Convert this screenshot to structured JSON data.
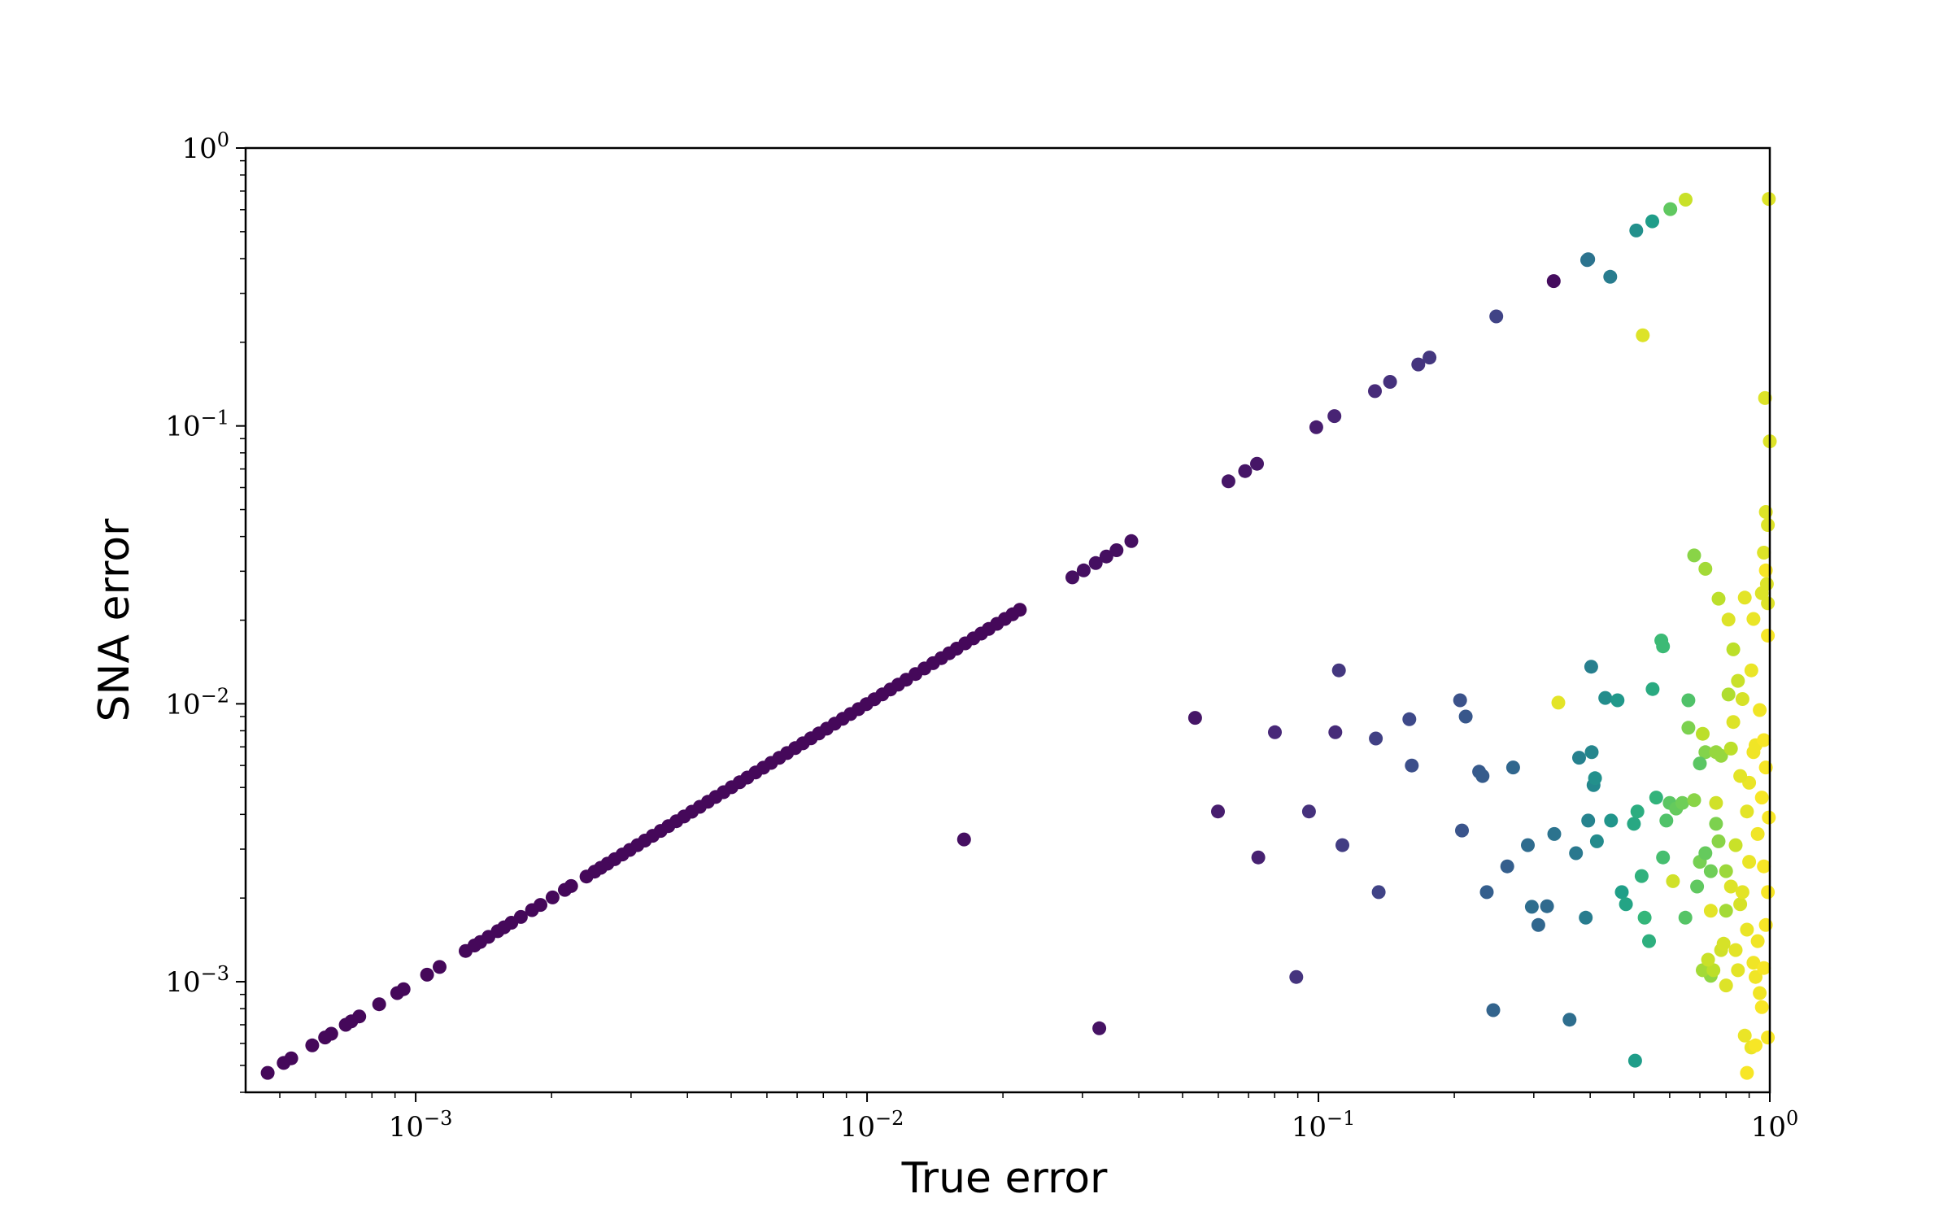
{
  "chart_data": {
    "type": "scatter",
    "title": "",
    "xlabel": "True error",
    "ylabel": "SNA error",
    "xscale": "log",
    "yscale": "log",
    "xlim": [
      0.00042,
      1.0
    ],
    "ylim": [
      0.0004,
      1.0
    ],
    "grid": false,
    "legend": "none",
    "colormap": "viridis",
    "x_ticks": [
      {
        "value": 0.001,
        "base": "10",
        "exp": "−3"
      },
      {
        "value": 0.01,
        "base": "10",
        "exp": "−2"
      },
      {
        "value": 0.1,
        "base": "10",
        "exp": "−1"
      },
      {
        "value": 1,
        "base": "10",
        "exp": "0"
      }
    ],
    "y_ticks": [
      {
        "value": 0.001,
        "base": "10",
        "exp": "−3"
      },
      {
        "value": 0.01,
        "base": "10",
        "exp": "−2"
      },
      {
        "value": 0.1,
        "base": "10",
        "exp": "−1"
      },
      {
        "value": 1,
        "base": "10",
        "exp": "0"
      }
    ],
    "diagonal_points": {
      "x": [
        0.00047,
        0.00051,
        0.00053,
        0.00059,
        0.00063,
        0.00065,
        0.0007,
        0.00072,
        0.00075,
        0.00083,
        0.00091,
        0.00094,
        0.00106,
        0.00113,
        0.00129,
        0.00135,
        0.00139,
        0.00145,
        0.00152,
        0.00157,
        0.00163,
        0.00171,
        0.00181,
        0.00189,
        0.00201,
        0.00214,
        0.00221,
        0.00239,
        0.00249,
        0.00257,
        0.00266,
        0.00276,
        0.00287,
        0.00298,
        0.0031,
        0.00322,
        0.00335,
        0.00349,
        0.00363,
        0.00378,
        0.00393,
        0.00409,
        0.00426,
        0.00444,
        0.00462,
        0.00481,
        0.00501,
        0.00522,
        0.00543,
        0.00566,
        0.00589,
        0.00613,
        0.00639,
        0.00665,
        0.00693,
        0.00721,
        0.00751,
        0.00782,
        0.00814,
        0.00848,
        0.00883,
        0.00919,
        0.00957,
        0.00997,
        0.01038,
        0.01081,
        0.01126,
        0.01172,
        0.01221,
        0.0128,
        0.0134,
        0.014,
        0.0146,
        0.0152,
        0.0158,
        0.0165,
        0.0172,
        0.0179,
        0.0186,
        0.0194,
        0.0202,
        0.021,
        0.0218,
        0.0285,
        0.0302,
        0.0321,
        0.0339,
        0.0357,
        0.0385,
        0.0632,
        0.0688,
        0.0731,
        0.0989,
        0.1085,
        0.1334,
        0.1441,
        0.1664,
        0.1762,
        0.2478,
        0.3321
      ],
      "y": [
        0.00047,
        0.00051,
        0.00053,
        0.00059,
        0.00063,
        0.00065,
        0.0007,
        0.00072,
        0.00075,
        0.00083,
        0.00091,
        0.00094,
        0.00106,
        0.00113,
        0.00129,
        0.00135,
        0.00139,
        0.00145,
        0.00152,
        0.00157,
        0.00163,
        0.00171,
        0.00181,
        0.00189,
        0.00201,
        0.00214,
        0.00221,
        0.00239,
        0.00249,
        0.00257,
        0.00266,
        0.00276,
        0.00287,
        0.00298,
        0.0031,
        0.00322,
        0.00335,
        0.00349,
        0.00363,
        0.00378,
        0.00393,
        0.00409,
        0.00426,
        0.00444,
        0.00462,
        0.00481,
        0.00501,
        0.00522,
        0.00543,
        0.00566,
        0.00589,
        0.00613,
        0.00639,
        0.00665,
        0.00693,
        0.00721,
        0.00751,
        0.00782,
        0.00814,
        0.00848,
        0.00883,
        0.00919,
        0.00957,
        0.00997,
        0.01038,
        0.01081,
        0.01126,
        0.01172,
        0.01221,
        0.0128,
        0.0134,
        0.014,
        0.0146,
        0.0152,
        0.0158,
        0.0165,
        0.0172,
        0.0179,
        0.0186,
        0.0194,
        0.0202,
        0.021,
        0.0218,
        0.0285,
        0.0302,
        0.0321,
        0.0339,
        0.0357,
        0.0385,
        0.0632,
        0.0688,
        0.0731,
        0.0989,
        0.1085,
        0.1334,
        0.1441,
        0.1664,
        0.1762,
        0.2478,
        0.3321
      ],
      "c": [
        0.02,
        0.02,
        0.02,
        0.02,
        0.02,
        0.02,
        0.02,
        0.02,
        0.02,
        0.02,
        0.02,
        0.02,
        0.02,
        0.02,
        0.02,
        0.02,
        0.02,
        0.02,
        0.02,
        0.02,
        0.02,
        0.02,
        0.02,
        0.02,
        0.02,
        0.02,
        0.02,
        0.02,
        0.02,
        0.02,
        0.02,
        0.02,
        0.02,
        0.02,
        0.02,
        0.02,
        0.02,
        0.02,
        0.02,
        0.02,
        0.02,
        0.02,
        0.02,
        0.02,
        0.02,
        0.02,
        0.02,
        0.02,
        0.02,
        0.02,
        0.02,
        0.02,
        0.02,
        0.02,
        0.02,
        0.02,
        0.02,
        0.02,
        0.02,
        0.02,
        0.02,
        0.02,
        0.02,
        0.02,
        0.02,
        0.02,
        0.02,
        0.02,
        0.02,
        0.02,
        0.02,
        0.02,
        0.02,
        0.02,
        0.02,
        0.02,
        0.02,
        0.02,
        0.02,
        0.02,
        0.02,
        0.02,
        0.02,
        0.04,
        0.04,
        0.04,
        0.04,
        0.04,
        0.04,
        0.06,
        0.06,
        0.06,
        0.08,
        0.1,
        0.12,
        0.14,
        0.15,
        0.16,
        0.2,
        0.03
      ]
    },
    "scattered_points": {
      "x": [
        0.0164,
        0.0327,
        0.0533,
        0.0599,
        0.0736,
        0.0801,
        0.0893,
        0.0953,
        0.109,
        0.111,
        0.113,
        0.134,
        0.136,
        0.159,
        0.161,
        0.206,
        0.208,
        0.212,
        0.227,
        0.231,
        0.236,
        0.244,
        0.262,
        0.27,
        0.291,
        0.297,
        0.307,
        0.321,
        0.333,
        0.36,
        0.372,
        0.378,
        0.391,
        0.396,
        0.402,
        0.403,
        0.407,
        0.414,
        0.41,
        0.432,
        0.445,
        0.46,
        0.47,
        0.48,
        0.5,
        0.503,
        0.509,
        0.52,
        0.528,
        0.54,
        0.55,
        0.56,
        0.575,
        0.58,
        0.59,
        0.6,
        0.62,
        0.64,
        0.66,
        0.68,
        0.69,
        0.7,
        0.72,
        0.74,
        0.76,
        0.65,
        0.71,
        0.8
      ],
      "y": [
        0.00325,
        0.00068,
        0.0089,
        0.0041,
        0.0028,
        0.0079,
        0.00104,
        0.0041,
        0.0079,
        0.0132,
        0.0031,
        0.0075,
        0.0021,
        0.0088,
        0.006,
        0.0103,
        0.0035,
        0.009,
        0.0057,
        0.0055,
        0.0021,
        0.00079,
        0.0026,
        0.0059,
        0.0031,
        0.00186,
        0.0016,
        0.00187,
        0.0034,
        0.00073,
        0.0029,
        0.0064,
        0.0017,
        0.0038,
        0.0136,
        0.0067,
        0.0051,
        0.0032,
        0.0054,
        0.0105,
        0.0038,
        0.0103,
        0.0021,
        0.0019,
        0.0037,
        0.00052,
        0.0041,
        0.0024,
        0.0017,
        0.0014,
        0.0113,
        0.0046,
        0.0169,
        0.0028,
        0.0038,
        0.0044,
        0.0042,
        0.0044,
        0.0082,
        0.0045,
        0.0022,
        0.0027,
        0.0067,
        0.00105,
        0.0067,
        0.0017,
        0.0011,
        0.0025
      ],
      "c": [
        0.04,
        0.05,
        0.06,
        0.08,
        0.09,
        0.11,
        0.15,
        0.14,
        0.12,
        0.16,
        0.18,
        0.19,
        0.2,
        0.22,
        0.24,
        0.25,
        0.26,
        0.27,
        0.28,
        0.29,
        0.3,
        0.32,
        0.3,
        0.33,
        0.35,
        0.36,
        0.33,
        0.34,
        0.38,
        0.36,
        0.4,
        0.44,
        0.42,
        0.45,
        0.43,
        0.46,
        0.47,
        0.48,
        0.5,
        0.49,
        0.52,
        0.53,
        0.56,
        0.58,
        0.6,
        0.55,
        0.62,
        0.64,
        0.66,
        0.63,
        0.61,
        0.65,
        0.68,
        0.7,
        0.72,
        0.74,
        0.76,
        0.78,
        0.8,
        0.82,
        0.75,
        0.79,
        0.81,
        0.83,
        0.84,
        0.73,
        0.86,
        0.85
      ]
    },
    "upper_points": {
      "x": [
        0.396,
        0.394,
        0.443,
        0.506,
        0.549,
        0.602,
        0.651,
        0.523,
        0.976,
        0.995,
        1.0,
        0.98,
        0.99,
        0.97,
        0.985,
        0.96,
        0.99
      ],
      "y": [
        0.398,
        0.395,
        0.344,
        0.505,
        0.545,
        0.603,
        0.652,
        0.212,
        0.126,
        0.656,
        0.088,
        0.049,
        0.044,
        0.035,
        0.027,
        0.025,
        0.023
      ],
      "c": [
        0.38,
        0.38,
        0.42,
        0.5,
        0.55,
        0.75,
        0.92,
        0.95,
        0.95,
        0.95,
        0.95,
        0.95,
        0.95,
        0.95,
        0.95,
        0.95,
        0.95
      ]
    },
    "dense_right_points": {
      "x": [
        0.58,
        0.66,
        0.7,
        0.72,
        0.74,
        0.76,
        0.77,
        0.78,
        0.8,
        0.81,
        0.82,
        0.83,
        0.84,
        0.85,
        0.86,
        0.87,
        0.88,
        0.89,
        0.9,
        0.91,
        0.92,
        0.93,
        0.94,
        0.95,
        0.96,
        0.97,
        0.98,
        0.99,
        0.995,
        0.75,
        0.78,
        0.82,
        0.86,
        0.9,
        0.94,
        0.97,
        0.99,
        0.8,
        0.84,
        0.88,
        0.92,
        0.96,
        0.98,
        0.71,
        0.76,
        0.83,
        0.87,
        0.91,
        0.95,
        0.99,
        0.73,
        0.79,
        0.85,
        0.89,
        0.93,
        0.97,
        0.68,
        0.72,
        0.77,
        0.81,
        0.92,
        0.98,
        0.34,
        0.61,
        0.74,
        0.89,
        0.93
      ],
      "y": [
        0.0161,
        0.0103,
        0.0061,
        0.0029,
        0.0025,
        0.0037,
        0.0032,
        0.0065,
        0.0018,
        0.0108,
        0.0069,
        0.0157,
        0.0031,
        0.0121,
        0.0019,
        0.0104,
        0.0241,
        0.0041,
        0.0052,
        0.0132,
        0.0067,
        0.0071,
        0.0034,
        0.0095,
        0.0046,
        0.0074,
        0.0059,
        0.0176,
        0.0039,
        0.0011,
        0.0013,
        0.0022,
        0.0055,
        0.0027,
        0.0014,
        0.0026,
        0.0021,
        0.00097,
        0.0013,
        0.00064,
        0.00117,
        0.00081,
        0.0016,
        0.0078,
        0.0044,
        0.0086,
        0.0021,
        0.00058,
        0.00091,
        0.00063,
        0.0012,
        0.00137,
        0.0011,
        0.00154,
        0.00104,
        0.00112,
        0.0342,
        0.0306,
        0.0239,
        0.0201,
        0.0202,
        0.0302,
        0.0101,
        0.0023,
        0.0018,
        0.00047,
        0.00059
      ],
      "c": [
        0.68,
        0.72,
        0.74,
        0.76,
        0.78,
        0.8,
        0.82,
        0.84,
        0.86,
        0.88,
        0.9,
        0.9,
        0.92,
        0.92,
        0.94,
        0.94,
        0.96,
        0.96,
        0.97,
        0.97,
        0.98,
        0.98,
        0.98,
        0.98,
        0.99,
        0.99,
        0.99,
        0.99,
        0.99,
        0.9,
        0.93,
        0.95,
        0.96,
        0.97,
        0.98,
        0.99,
        0.99,
        0.95,
        0.96,
        0.97,
        0.98,
        0.99,
        0.99,
        0.9,
        0.93,
        0.95,
        0.96,
        0.97,
        0.98,
        0.99,
        0.92,
        0.94,
        0.96,
        0.97,
        0.98,
        0.99,
        0.82,
        0.86,
        0.9,
        0.95,
        0.97,
        0.99,
        0.96,
        0.93,
        0.96,
        0.99,
        0.99
      ]
    }
  }
}
